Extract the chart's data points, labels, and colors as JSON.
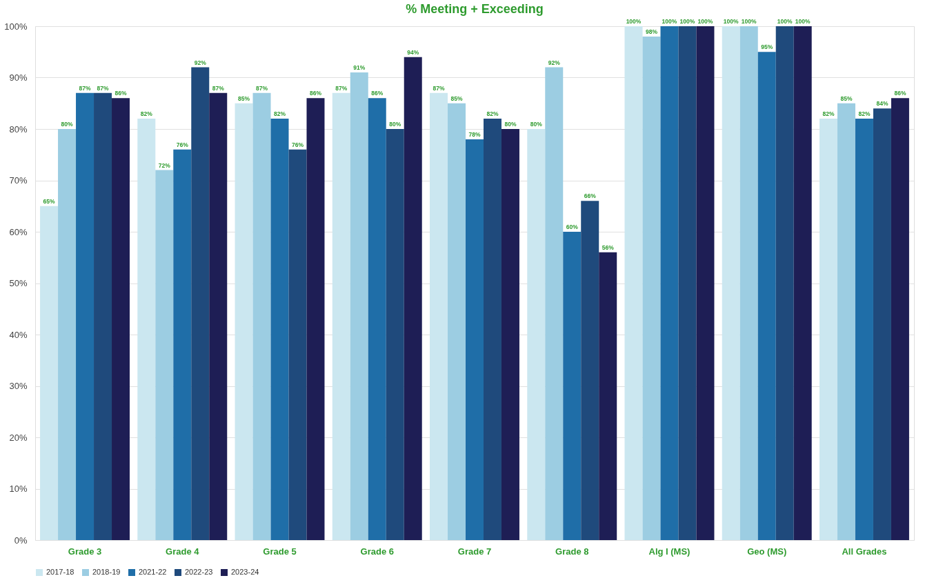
{
  "chart_data": {
    "type": "bar",
    "title": "% Meeting + Exceeding",
    "categories": [
      "Grade 3",
      "Grade 4",
      "Grade 5",
      "Grade 6",
      "Grade 7",
      "Grade 8",
      "Alg I (MS)",
      "Geo (MS)",
      "All Grades"
    ],
    "series": [
      {
        "name": "2017-18",
        "color": "#cbe7f0",
        "values": [
          65,
          82,
          85,
          87,
          87,
          80,
          100,
          100,
          82
        ],
        "value_labels": [
          "65%",
          "82%",
          "85%",
          "87%",
          "87%",
          "80%",
          "100%",
          "100%",
          "82%"
        ]
      },
      {
        "name": "2018-19",
        "color": "#9ccde2",
        "values": [
          80,
          72,
          87,
          91,
          85,
          92,
          98,
          100,
          85
        ],
        "value_labels": [
          "80%",
          "72%",
          "87%",
          "91%",
          "85%",
          "92%",
          "98%",
          "100%",
          "85%"
        ]
      },
      {
        "name": "2021-22",
        "color": "#1f6ea8",
        "values": [
          87,
          76,
          82,
          86,
          78,
          60,
          100,
          95,
          82
        ],
        "value_labels": [
          "87%",
          "76%",
          "82%",
          "86%",
          "78%",
          "60%",
          "100%",
          "95%",
          "82%"
        ]
      },
      {
        "name": "2022-23",
        "color": "#1f4a7c",
        "values": [
          87,
          92,
          76,
          80,
          82,
          66,
          100,
          100,
          84
        ],
        "value_labels": [
          "87%",
          "92%",
          "76%",
          "80%",
          "82%",
          "66%",
          "100%",
          "100%",
          "84%"
        ]
      },
      {
        "name": "2023-24",
        "color": "#1e1e55",
        "values": [
          86,
          87,
          86,
          94,
          80,
          56,
          100,
          100,
          86
        ],
        "value_labels": [
          "86%",
          "87%",
          "86%",
          "94%",
          "80%",
          "56%",
          "100%",
          "100%",
          "86%"
        ]
      }
    ],
    "ylim": [
      0,
      100
    ],
    "yticks": [
      {
        "value": 0,
        "label": "0%"
      },
      {
        "value": 10,
        "label": "10%"
      },
      {
        "value": 20,
        "label": "20%"
      },
      {
        "value": 30,
        "label": "30%"
      },
      {
        "value": 40,
        "label": "40%"
      },
      {
        "value": 50,
        "label": "50%"
      },
      {
        "value": 60,
        "label": "60%"
      },
      {
        "value": 70,
        "label": "70%"
      },
      {
        "value": 80,
        "label": "80%"
      },
      {
        "value": 90,
        "label": "90%"
      },
      {
        "value": 100,
        "label": "100%"
      }
    ],
    "grid": "y",
    "legend": "bottom"
  }
}
